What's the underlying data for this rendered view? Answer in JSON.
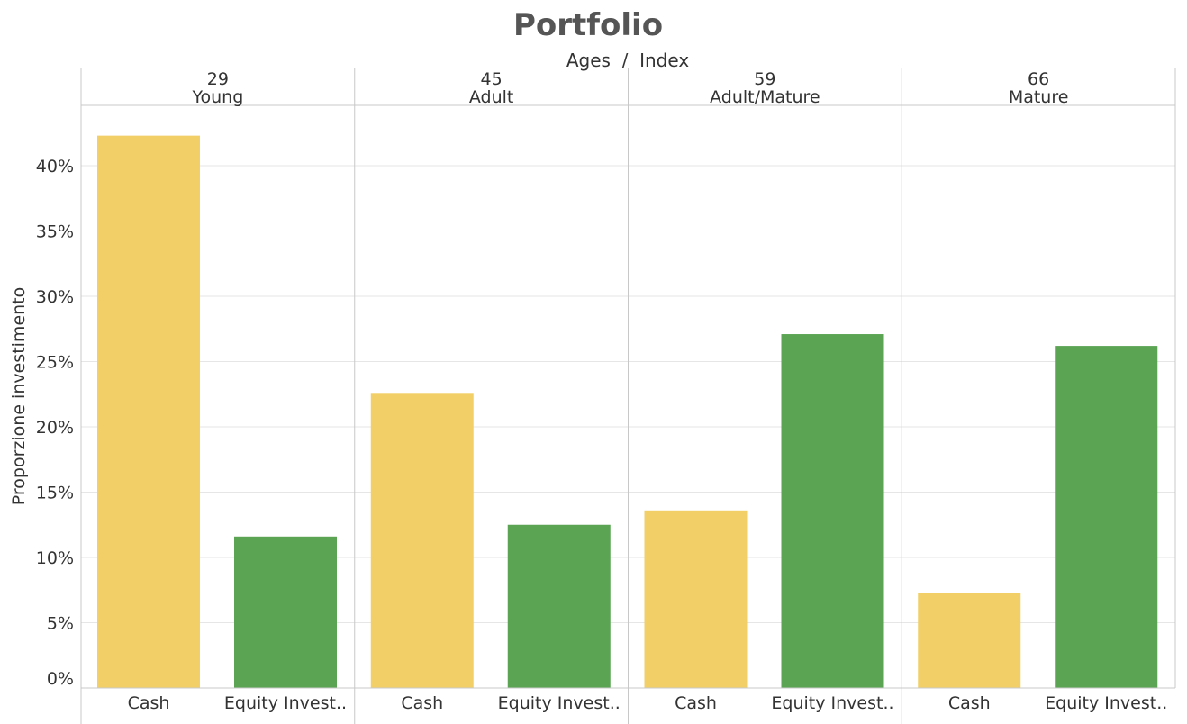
{
  "chart_data": {
    "type": "bar",
    "title": "Portfolio",
    "column_header_label": "Ages  /  Index",
    "ylabel": "Proporzione investimento",
    "ylim": [
      0,
      44.6
    ],
    "yticks": [
      0,
      5,
      10,
      15,
      20,
      25,
      30,
      35,
      40
    ],
    "ytick_labels": [
      "0%",
      "5%",
      "10%",
      "15%",
      "20%",
      "25%",
      "30%",
      "35%",
      "40%"
    ],
    "grid": true,
    "categories": [
      "Cash",
      "Equity Invest.."
    ],
    "colors": {
      "Cash": "#f2cf67",
      "Equity Invest..": "#5aa453"
    },
    "panels": [
      {
        "age": "29",
        "index": "Young",
        "values": [
          42.3,
          11.6
        ]
      },
      {
        "age": "45",
        "index": "Adult",
        "values": [
          22.6,
          12.5
        ]
      },
      {
        "age": "59",
        "index": "Adult/Mature",
        "values": [
          13.6,
          27.1
        ]
      },
      {
        "age": "66",
        "index": "Mature",
        "values": [
          7.3,
          26.2
        ]
      }
    ]
  }
}
